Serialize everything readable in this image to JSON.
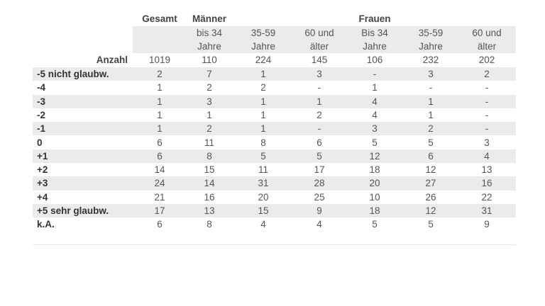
{
  "table": {
    "groups": [
      {
        "label": "Gesamt",
        "col": 0
      },
      {
        "label": "Männer",
        "col": 1
      },
      {
        "label": "Frauen",
        "col": 4
      }
    ],
    "subheaders": [
      "bis 34\nJahre",
      "35-59\nJahre",
      "60 und\nälter",
      "Bis 34\nJahre",
      "35-59\nJahre",
      "60 und\nälter"
    ],
    "count_label": "Anzahl",
    "counts": [
      1019,
      110,
      224,
      145,
      106,
      232,
      202
    ],
    "rows": [
      {
        "label": "-5 nicht glaubw.",
        "values": [
          2,
          7,
          1,
          3,
          "-",
          3,
          2
        ]
      },
      {
        "label": "-4",
        "values": [
          1,
          2,
          2,
          "-",
          1,
          "-",
          "-"
        ]
      },
      {
        "label": "-3",
        "values": [
          1,
          3,
          1,
          1,
          4,
          1,
          "-"
        ]
      },
      {
        "label": "-2",
        "values": [
          1,
          1,
          1,
          2,
          4,
          1,
          "-"
        ]
      },
      {
        "label": "-1",
        "values": [
          1,
          2,
          1,
          "-",
          3,
          2,
          "-"
        ]
      },
      {
        "label": "0",
        "values": [
          6,
          11,
          8,
          6,
          5,
          5,
          3
        ]
      },
      {
        "label": "+1",
        "values": [
          6,
          8,
          5,
          5,
          12,
          6,
          4
        ]
      },
      {
        "label": "+2",
        "values": [
          14,
          15,
          11,
          17,
          18,
          12,
          13
        ]
      },
      {
        "label": "+3",
        "values": [
          24,
          14,
          31,
          28,
          20,
          27,
          16
        ]
      },
      {
        "label": "+4",
        "values": [
          21,
          16,
          20,
          25,
          10,
          26,
          22
        ]
      },
      {
        "label": "+5 sehr glaubw.",
        "values": [
          17,
          13,
          15,
          9,
          18,
          12,
          31
        ]
      },
      {
        "label": "k.A.",
        "values": [
          6,
          8,
          4,
          4,
          5,
          5,
          9
        ]
      }
    ]
  }
}
